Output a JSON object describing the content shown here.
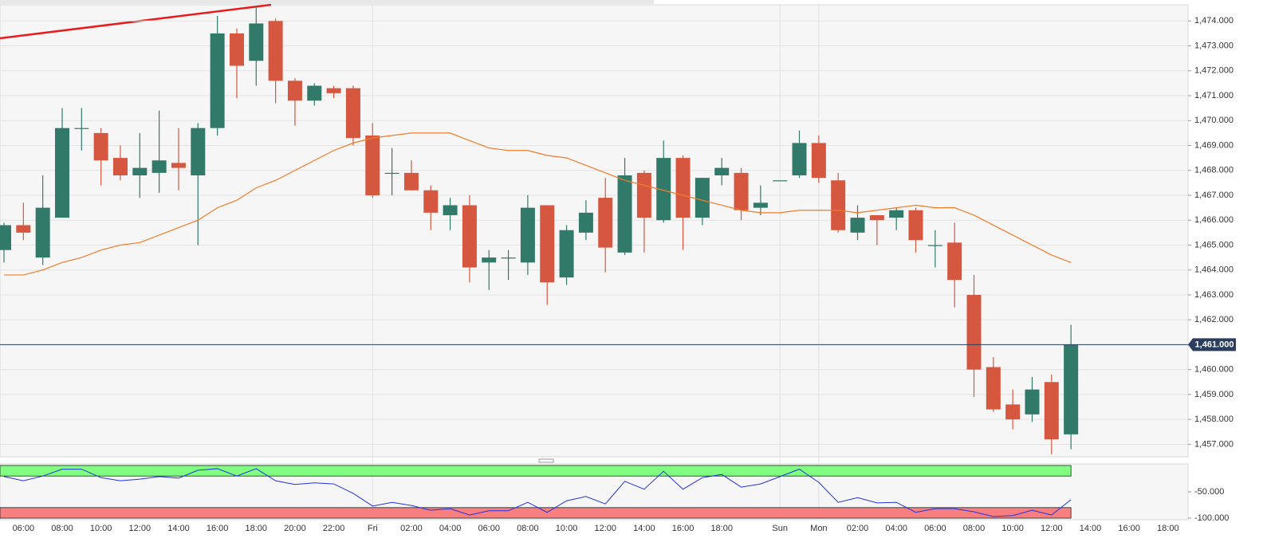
{
  "chart_data": [
    {
      "type": "candlestick",
      "categories": [
        null,
        "06:00",
        null,
        "08:00",
        null,
        "10:00",
        null,
        "12:00",
        null,
        "14:00",
        null,
        "16:00",
        null,
        "18:00",
        null,
        "20:00",
        null,
        "22:00",
        null,
        "Fri",
        null,
        "02:00",
        null,
        "04:00",
        null,
        "06:00",
        null,
        "08:00",
        null,
        "10:00",
        null,
        "12:00",
        null,
        "14:00",
        null,
        "16:00",
        null,
        "18:00",
        null,
        null,
        "Sun",
        null,
        "Mon",
        null,
        "02:00",
        null,
        "04:00",
        null,
        "06:00",
        null,
        "08:00",
        null,
        "10:00",
        null,
        "12:00",
        null,
        "14:00",
        null,
        "16:00",
        null,
        "18:00"
      ],
      "open": [
        1464.8,
        1465.8,
        1464.5,
        1466.1,
        1469.7,
        1469.5,
        1468.5,
        1467.8,
        1467.9,
        1468.3,
        1467.8,
        1469.7,
        1473.5,
        1472.4,
        1474.0,
        1471.6,
        1470.8,
        1471.3,
        1471.3,
        1469.4,
        1467.9,
        1467.9,
        1467.2,
        1466.2,
        1466.6,
        1464.3,
        1464.5,
        1464.3,
        1466.6,
        1463.7,
        1465.5,
        1466.9,
        1464.7,
        1467.9,
        1466.0,
        1468.5,
        1466.1,
        1467.8,
        1467.9,
        1466.5,
        1467.6,
        1467.8,
        1469.1,
        1467.6,
        1465.5,
        1466.2,
        1466.1,
        1466.4,
        1465.0,
        1465.1,
        1463.0,
        1460.1,
        1458.6,
        1458.2,
        1459.5,
        1457.4,
        null,
        null,
        null,
        null,
        null
      ],
      "high": [
        1465.9,
        1466.7,
        1467.8,
        1470.5,
        1470.5,
        1469.7,
        1469.0,
        1469.5,
        1470.4,
        1469.7,
        1469.9,
        1474.2,
        1473.7,
        1474.6,
        1474.1,
        1471.7,
        1471.5,
        1471.4,
        1471.4,
        1469.9,
        1468.9,
        1468.4,
        1467.4,
        1466.9,
        1467.0,
        1464.8,
        1464.8,
        1467.0,
        1466.6,
        1465.8,
        1466.8,
        1467.7,
        1468.5,
        1468.0,
        1469.2,
        1468.6,
        1467.7,
        1468.5,
        1468.1,
        1467.4,
        1467.6,
        1469.6,
        1469.4,
        1467.9,
        1466.6,
        1466.2,
        1466.5,
        1466.5,
        1465.6,
        1465.9,
        1463.8,
        1460.5,
        1459.2,
        1459.7,
        1459.8,
        1461.8,
        null,
        null,
        null,
        null,
        null
      ],
      "low": [
        1464.3,
        1465.2,
        1464.2,
        1466.1,
        1468.8,
        1467.4,
        1467.6,
        1466.9,
        1467.1,
        1467.2,
        1465.0,
        1469.4,
        1470.9,
        1471.4,
        1470.7,
        1469.8,
        1470.6,
        1470.9,
        1469.0,
        1466.9,
        1467.0,
        1467.2,
        1465.6,
        1465.6,
        1463.5,
        1463.2,
        1463.6,
        1463.8,
        1462.6,
        1463.4,
        1465.2,
        1463.9,
        1464.6,
        1464.7,
        1465.9,
        1464.8,
        1465.8,
        1467.4,
        1466.0,
        1466.2,
        1467.6,
        1467.7,
        1467.5,
        1465.5,
        1465.2,
        1465.0,
        1465.6,
        1464.7,
        1464.1,
        1462.5,
        1458.9,
        1458.3,
        1457.6,
        1457.9,
        1456.6,
        1456.8,
        null,
        null,
        null,
        null,
        null
      ],
      "close": [
        1465.8,
        1465.5,
        1466.5,
        1469.7,
        1469.7,
        1468.4,
        1467.8,
        1468.1,
        1468.4,
        1468.1,
        1469.7,
        1473.5,
        1472.2,
        1473.9,
        1471.6,
        1470.8,
        1471.4,
        1471.1,
        1469.3,
        1467.0,
        1467.9,
        1467.2,
        1466.3,
        1466.6,
        1464.1,
        1464.5,
        1464.5,
        1466.5,
        1463.5,
        1465.6,
        1466.3,
        1464.9,
        1467.8,
        1466.1,
        1468.5,
        1466.1,
        1467.7,
        1468.1,
        1466.4,
        1466.7,
        1467.6,
        1469.1,
        1467.7,
        1465.6,
        1466.1,
        1466.0,
        1466.4,
        1465.2,
        1465.0,
        1463.6,
        1460.0,
        1458.4,
        1458.0,
        1459.2,
        1457.2,
        1461.0,
        null,
        null,
        null,
        null,
        null
      ],
      "up_color": "#317a6a",
      "down_color": "#d6573f",
      "ma": {
        "color": "#f07c2a",
        "values": [
          1463.8,
          1463.8,
          1464.0,
          1464.3,
          1464.5,
          1464.8,
          1465.0,
          1465.1,
          1465.4,
          1465.7,
          1466.0,
          1466.5,
          1466.8,
          1467.3,
          1467.6,
          1468.0,
          1468.4,
          1468.8,
          1469.1,
          1469.3,
          1469.4,
          1469.5,
          1469.5,
          1469.5,
          1469.2,
          1468.9,
          1468.8,
          1468.8,
          1468.6,
          1468.5,
          1468.2,
          1467.9,
          1467.6,
          1467.4,
          1467.2,
          1467.0,
          1466.8,
          1466.6,
          1466.4,
          1466.3,
          1466.3,
          1466.4,
          1466.4,
          1466.4,
          1466.3,
          1466.4,
          1466.5,
          1466.6,
          1466.5,
          1466.5,
          1466.2,
          1465.8,
          1465.4,
          1465.0,
          1464.6,
          1464.3,
          null,
          null,
          null,
          null,
          null
        ]
      },
      "last_price": {
        "value": 1461,
        "label": "1,461.000"
      },
      "ylim": [
        1456.5,
        1474.65
      ],
      "yticks": [
        {
          "value": 1457,
          "label": "1,457.000"
        },
        {
          "value": 1458,
          "label": "1,458.000"
        },
        {
          "value": 1459,
          "label": "1,459.000"
        },
        {
          "value": 1460,
          "label": "1,460.000"
        },
        {
          "value": 1461,
          "label": "1,461.000"
        },
        {
          "value": 1462,
          "label": "1,462.000"
        },
        {
          "value": 1463,
          "label": "1,463.000"
        },
        {
          "value": 1464,
          "label": "1,464.000"
        },
        {
          "value": 1465,
          "label": "1,465.000"
        },
        {
          "value": 1466,
          "label": "1,466.000"
        },
        {
          "value": 1467,
          "label": "1,467.000"
        },
        {
          "value": 1468,
          "label": "1,468.000"
        },
        {
          "value": 1469,
          "label": "1,469.000"
        },
        {
          "value": 1470,
          "label": "1,470.000"
        },
        {
          "value": 1471,
          "label": "1,471.000"
        },
        {
          "value": 1472,
          "label": "1,472.000"
        },
        {
          "value": 1473,
          "label": "1,473.000"
        },
        {
          "value": 1474,
          "label": "1,474.000"
        }
      ],
      "grid": true
    },
    {
      "type": "line",
      "series": [
        {
          "color": "#2233dd",
          "values": [
            -21,
            -29,
            -20,
            -7,
            -7,
            -23,
            -29,
            -26,
            -21,
            -24,
            -9,
            -6,
            -20,
            -6,
            -29,
            -36,
            -33,
            -35,
            -53,
            -77,
            -70,
            -76,
            -85,
            -82,
            -94,
            -86,
            -86,
            -70,
            -89,
            -67,
            -59,
            -73,
            -30,
            -45,
            -11,
            -45,
            -23,
            -17,
            -41,
            -35,
            -21,
            -7,
            -32,
            -70,
            -61,
            -71,
            -70,
            -89,
            -82,
            -82,
            -88,
            -97,
            -95,
            -85,
            -94,
            -65,
            null,
            null,
            null,
            null,
            null
          ]
        }
      ],
      "bands": [
        {
          "from": -20,
          "to": 0,
          "color": "#80ff80"
        },
        {
          "from": -100,
          "to": -80,
          "color": "#f77f7f"
        }
      ],
      "ylim": [
        -103,
        3
      ],
      "yticks": [
        {
          "value": -50,
          "label": "-50.000"
        },
        {
          "value": -100,
          "label": "-100.000"
        }
      ]
    }
  ]
}
